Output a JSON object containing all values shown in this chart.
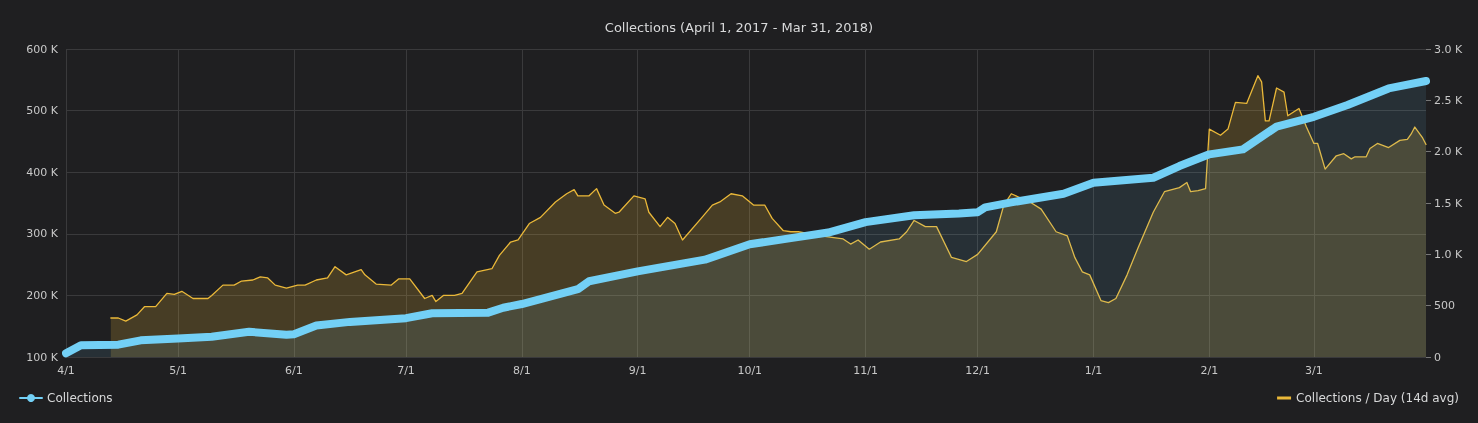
{
  "chart_data": {
    "type": "area",
    "title": "Collections (April 1, 2017 - Mar 31, 2018)",
    "xlim": [
      "2017-04-01",
      "2018-03-31"
    ],
    "xticks": [
      {
        "value": "2017-04-01",
        "label": "4/1"
      },
      {
        "value": "2017-05-01",
        "label": "5/1"
      },
      {
        "value": "2017-06-01",
        "label": "6/1"
      },
      {
        "value": "2017-07-01",
        "label": "7/1"
      },
      {
        "value": "2017-08-01",
        "label": "8/1"
      },
      {
        "value": "2017-09-01",
        "label": "9/1"
      },
      {
        "value": "2017-10-01",
        "label": "10/1"
      },
      {
        "value": "2017-11-01",
        "label": "11/1"
      },
      {
        "value": "2017-12-01",
        "label": "12/1"
      },
      {
        "value": "2018-01-01",
        "label": "1/1"
      },
      {
        "value": "2018-02-01",
        "label": "2/1"
      },
      {
        "value": "2018-03-01",
        "label": "3/1"
      }
    ],
    "ylim": [
      100000,
      600000
    ],
    "yticks": [
      {
        "value": 100000,
        "label": "100 K"
      },
      {
        "value": 200000,
        "label": "200 K"
      },
      {
        "value": 300000,
        "label": "300 K"
      },
      {
        "value": 400000,
        "label": "400 K"
      },
      {
        "value": 500000,
        "label": "500 K"
      },
      {
        "value": 600000,
        "label": "600 K"
      }
    ],
    "y2lim": [
      0,
      3000
    ],
    "y2ticks": [
      0,
      500,
      {
        "value": 1000,
        "label": "1.0 K"
      },
      {
        "value": 1500,
        "label": "1.5 K"
      },
      {
        "value": 2000,
        "label": "2.0 K"
      },
      {
        "value": 2500,
        "label": "2.5 K"
      },
      {
        "value": 3000,
        "label": "3.0 K"
      }
    ],
    "grid": true,
    "legend": "bottom",
    "marker": "none",
    "line_style": "solid",
    "series": [
      {
        "name": "Collections",
        "color": "#73d0f6",
        "x": [
          "2017-04-01",
          "2017-04-05",
          "2017-04-15",
          "2017-04-21",
          "2017-05-01",
          "2017-05-10",
          "2017-05-20",
          "2017-05-30",
          "2017-06-01",
          "2017-06-07",
          "2017-06-16",
          "2017-07-01",
          "2017-07-08",
          "2017-07-23",
          "2017-07-27",
          "2017-08-01",
          "2017-08-16",
          "2017-08-19",
          "2017-09-01",
          "2017-09-19",
          "2017-10-01",
          "2017-10-12",
          "2017-10-22",
          "2017-11-01",
          "2017-11-14",
          "2017-11-26",
          "2017-12-01",
          "2017-12-03",
          "2017-12-10",
          "2017-12-24",
          "2018-01-01",
          "2018-01-17",
          "2018-01-24",
          "2018-02-01",
          "2018-02-10",
          "2018-02-19",
          "2018-03-01",
          "2018-03-10",
          "2018-03-21",
          "2018-03-31"
        ],
        "values": [
          106000,
          119000,
          120000,
          127000,
          130000,
          133000,
          141000,
          136000,
          137000,
          151000,
          157000,
          163000,
          171000,
          172000,
          180000,
          186000,
          210000,
          223000,
          239000,
          258000,
          283000,
          293000,
          302000,
          319000,
          330000,
          333000,
          335000,
          343000,
          351000,
          365000,
          383000,
          391000,
          410000,
          429000,
          437000,
          474000,
          490000,
          509000,
          536000,
          548000
        ]
      },
      {
        "name": "Collections / Day (14d avg)",
        "color": "#eab839",
        "axis": "y2",
        "x": [
          "2017-04-13",
          "2017-04-15",
          "2017-04-17",
          "2017-04-20",
          "2017-04-22",
          "2017-04-25",
          "2017-04-28",
          "2017-04-30",
          "2017-05-02",
          "2017-05-05",
          "2017-05-09",
          "2017-05-10",
          "2017-05-13",
          "2017-05-16",
          "2017-05-18",
          "2017-05-21",
          "2017-05-23",
          "2017-05-25",
          "2017-05-27",
          "2017-05-30",
          "2017-06-02",
          "2017-06-04",
          "2017-06-07",
          "2017-06-10",
          "2017-06-12",
          "2017-06-15",
          "2017-06-19",
          "2017-06-20",
          "2017-06-23",
          "2017-06-27",
          "2017-06-29",
          "2017-07-02",
          "2017-07-06",
          "2017-07-08",
          "2017-07-09",
          "2017-07-11",
          "2017-07-14",
          "2017-07-16",
          "2017-07-20",
          "2017-07-24",
          "2017-07-26",
          "2017-07-29",
          "2017-07-31",
          "2017-08-03",
          "2017-08-06",
          "2017-08-10",
          "2017-08-13",
          "2017-08-15",
          "2017-08-16",
          "2017-08-19",
          "2017-08-21",
          "2017-08-23",
          "2017-08-26",
          "2017-08-27",
          "2017-08-31",
          "2017-09-03",
          "2017-09-04",
          "2017-09-07",
          "2017-09-09",
          "2017-09-11",
          "2017-09-13",
          "2017-09-18",
          "2017-09-21",
          "2017-09-23",
          "2017-09-26",
          "2017-09-29",
          "2017-10-02",
          "2017-10-05",
          "2017-10-07",
          "2017-10-10",
          "2017-10-12",
          "2017-10-14",
          "2017-10-20",
          "2017-10-26",
          "2017-10-28",
          "2017-10-30",
          "2017-11-02",
          "2017-11-05",
          "2017-11-10",
          "2017-11-12",
          "2017-11-14",
          "2017-11-17",
          "2017-11-20",
          "2017-11-24",
          "2017-11-28",
          "2017-12-01",
          "2017-12-06",
          "2017-12-08",
          "2017-12-10",
          "2017-12-15",
          "2017-12-18",
          "2017-12-22",
          "2017-12-25",
          "2017-12-27",
          "2017-12-29",
          "2017-12-31",
          "2018-01-03",
          "2018-01-05",
          "2018-01-07",
          "2018-01-10",
          "2018-01-13",
          "2018-01-17",
          "2018-01-20",
          "2018-01-24",
          "2018-01-26",
          "2018-01-27",
          "2018-01-29",
          "2018-01-31",
          "2018-02-01",
          "2018-02-04",
          "2018-02-06",
          "2018-02-08",
          "2018-02-11",
          "2018-02-14",
          "2018-02-15",
          "2018-02-16",
          "2018-02-17",
          "2018-02-19",
          "2018-02-21",
          "2018-02-22",
          "2018-02-25",
          "2018-02-27",
          "2018-03-01",
          "2018-03-02",
          "2018-03-04",
          "2018-03-07",
          "2018-03-09",
          "2018-03-11",
          "2018-03-12",
          "2018-03-15",
          "2018-03-16",
          "2018-03-18",
          "2018-03-21",
          "2018-03-24",
          "2018-03-26",
          "2018-03-27",
          "2018-03-28",
          "2018-03-30",
          "2018-03-31"
        ],
        "values": [
          380,
          380,
          350,
          410,
          490,
          490,
          620,
          610,
          640,
          570,
          570,
          600,
          700,
          700,
          740,
          750,
          780,
          770,
          700,
          670,
          700,
          700,
          750,
          770,
          880,
          800,
          850,
          800,
          710,
          700,
          760,
          760,
          570,
          600,
          540,
          600,
          600,
          620,
          830,
          860,
          990,
          1120,
          1140,
          1300,
          1360,
          1510,
          1590,
          1630,
          1570,
          1570,
          1640,
          1480,
          1400,
          1410,
          1570,
          1540,
          1410,
          1270,
          1360,
          1300,
          1140,
          1350,
          1480,
          1510,
          1590,
          1570,
          1480,
          1480,
          1350,
          1230,
          1220,
          1220,
          1180,
          1150,
          1100,
          1140,
          1050,
          1120,
          1150,
          1220,
          1330,
          1270,
          1270,
          970,
          930,
          1000,
          1220,
          1480,
          1590,
          1510,
          1440,
          1220,
          1180,
          970,
          830,
          800,
          550,
          530,
          570,
          800,
          1070,
          1410,
          1610,
          1650,
          1700,
          1610,
          1620,
          1640,
          2220,
          2160,
          2220,
          2480,
          2470,
          2740,
          2680,
          2300,
          2300,
          2620,
          2580,
          2350,
          2420,
          2240,
          2080,
          2080,
          1830,
          1960,
          1980,
          1930,
          1950,
          1950,
          2030,
          2080,
          2040,
          2110,
          2120,
          2170,
          2240,
          2140,
          2070
        ]
      }
    ]
  }
}
